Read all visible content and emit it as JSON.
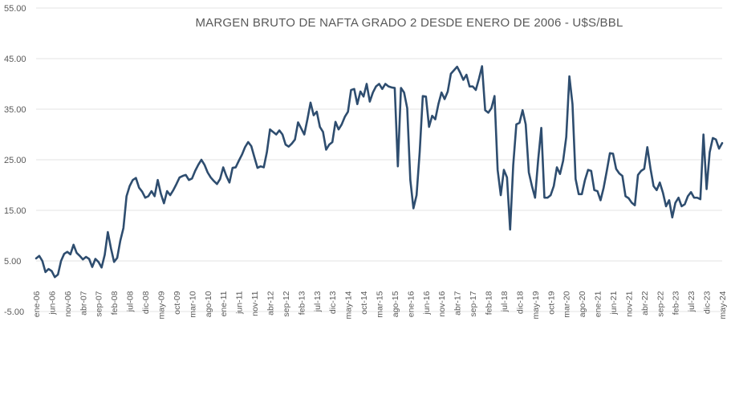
{
  "chart_data": {
    "type": "line",
    "title": "MARGEN BRUTO DE NAFTA GRADO 2 DESDE ENERO DE 2006 - U$S/BBL",
    "xlabel": "",
    "ylabel": "",
    "ylim": [
      -5,
      55
    ],
    "yticks": [
      -5,
      5,
      15,
      25,
      35,
      45,
      55
    ],
    "ytick_labels": [
      "-5.00",
      "5.00",
      "15.00",
      "25.00",
      "35.00",
      "45.00",
      "55.00"
    ],
    "grid": true,
    "legend": "none",
    "line_color": "#2e4d6f",
    "x_start": "ene-06",
    "x_end": "may-24",
    "xtick_labels": [
      "ene-06",
      "jun-06",
      "nov-06",
      "abr-07",
      "sep-07",
      "feb-08",
      "jul-08",
      "dic-08",
      "may-09",
      "oct-09",
      "mar-10",
      "ago-10",
      "ene-11",
      "jun-11",
      "nov-11",
      "abr-12",
      "sep-12",
      "feb-13",
      "jul-13",
      "dic-13",
      "may-14",
      "oct-14",
      "mar-15",
      "ago-15",
      "ene-16",
      "jun-16",
      "nov-16",
      "abr-17",
      "sep-17",
      "feb-18",
      "jul-18",
      "dic-18",
      "may-19",
      "oct-19",
      "mar-20",
      "ago-20",
      "ene-21",
      "jun-21",
      "nov-21",
      "abr-22",
      "sep-22",
      "feb-23",
      "jul-23",
      "dic-23",
      "may-24"
    ],
    "values": [
      5.5,
      6.0,
      5.0,
      2.8,
      3.4,
      3.0,
      1.8,
      2.3,
      5.0,
      6.4,
      6.8,
      6.3,
      8.2,
      6.6,
      6.0,
      5.3,
      5.8,
      5.4,
      3.8,
      5.4,
      4.8,
      3.7,
      6.2,
      10.7,
      7.5,
      4.8,
      5.6,
      9.0,
      11.5,
      17.8,
      19.8,
      21.0,
      21.4,
      19.5,
      18.7,
      17.5,
      17.8,
      18.8,
      17.8,
      21.0,
      18.3,
      16.4,
      18.8,
      18.0,
      19.0,
      20.2,
      21.5,
      21.8,
      22.0,
      21.0,
      21.3,
      22.8,
      24.0,
      25.0,
      24.0,
      22.5,
      21.5,
      20.8,
      20.2,
      21.2,
      23.5,
      21.8,
      20.5,
      23.4,
      23.5,
      24.8,
      26.0,
      27.5,
      28.5,
      27.7,
      25.5,
      23.4,
      23.7,
      23.5,
      26.5,
      31.0,
      30.5,
      30.0,
      30.8,
      30.0,
      28.0,
      27.6,
      28.2,
      29.0,
      32.4,
      31.2,
      30.0,
      33.0,
      36.3,
      33.8,
      34.5,
      31.5,
      30.5,
      27.0,
      28.0,
      28.5,
      32.5,
      31.0,
      32.0,
      33.5,
      34.5,
      38.8,
      39.0,
      36.0,
      38.5,
      37.5,
      40.0,
      36.5,
      38.3,
      39.5,
      40.0,
      39.0,
      40.0,
      39.5,
      39.3,
      39.2,
      23.7,
      39.2,
      38.3,
      35.2,
      21.0,
      15.4,
      18.0,
      26.5,
      37.6,
      37.5,
      31.5,
      33.7,
      33.0,
      36.0,
      38.3,
      37.0,
      38.5,
      42.0,
      42.7,
      43.4,
      42.2,
      40.8,
      41.8,
      39.5,
      39.5,
      38.8,
      41.0,
      43.5,
      34.8,
      34.3,
      35.2,
      37.6,
      23.0,
      18.0,
      23.0,
      21.5,
      11.2,
      24.0,
      32.0,
      32.3,
      34.8,
      32.0,
      22.5,
      19.8,
      17.5,
      25.0,
      31.3,
      17.5,
      17.5,
      18.0,
      19.8,
      23.5,
      22.2,
      24.8,
      29.5,
      41.5,
      36.0,
      21.2,
      18.2,
      18.2,
      21.0,
      23.0,
      22.8,
      19.0,
      18.8,
      17.0,
      19.5,
      22.8,
      26.3,
      26.2,
      23.2,
      22.3,
      21.8,
      17.8,
      17.4,
      16.5,
      16.0,
      22.0,
      22.8,
      23.2,
      27.5,
      23.3,
      19.8,
      19.0,
      20.5,
      18.5,
      15.8,
      17.0,
      13.6,
      16.5,
      17.5,
      15.8,
      16.2,
      17.8,
      18.6,
      17.5,
      17.5,
      17.2,
      30.0,
      19.2,
      26.5,
      29.3,
      29.0,
      27.2,
      28.3
    ]
  }
}
